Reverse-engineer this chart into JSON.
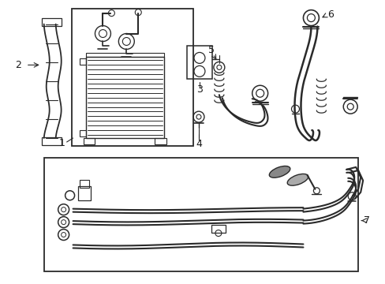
{
  "bg_color": "#ffffff",
  "line_color": "#2a2a2a",
  "label_color": "#1a1a1a",
  "figsize": [
    4.89,
    3.6
  ],
  "dpi": 100
}
